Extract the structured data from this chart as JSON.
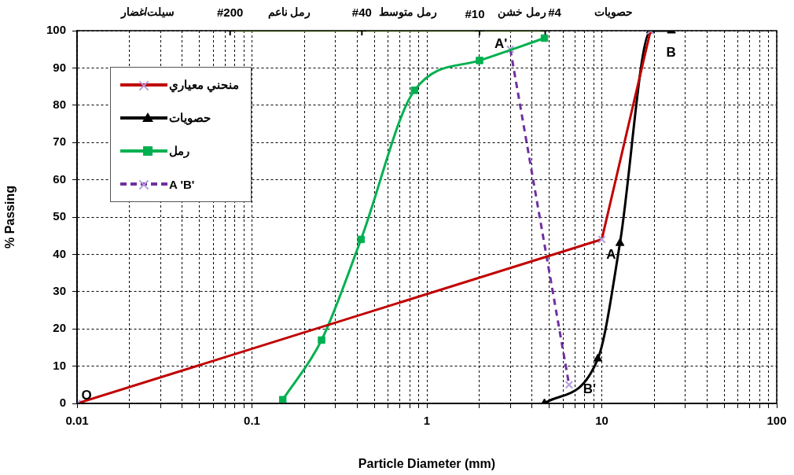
{
  "chart_data": {
    "type": "line",
    "xlabel": "Particle Diameter (mm)",
    "ylabel": "% Passing",
    "log": "x",
    "xlim": [
      0.01,
      100
    ],
    "xticks": [
      0.01,
      0.1,
      1,
      10,
      100
    ],
    "ylim": [
      0,
      100
    ],
    "yticks": [
      0,
      10,
      20,
      30,
      40,
      50,
      60,
      70,
      80,
      90,
      100
    ],
    "grid": true,
    "legend": "top left",
    "series": [
      {
        "name": "منحني معياري",
        "color": "#c00000",
        "marker": "cross",
        "line_style": "solid",
        "x": [
          0.01,
          10,
          19
        ],
        "values": [
          0,
          44,
          100
        ]
      },
      {
        "name": "حصويات",
        "color": "#000000",
        "marker": "triangle",
        "line_style": "solid",
        "x": [
          4.7,
          9.5,
          12.7,
          19,
          25
        ],
        "values": [
          0,
          12,
          43,
          100,
          100
        ]
      },
      {
        "name": "رمل",
        "color": "#00b050",
        "marker": "square",
        "line_style": "solid",
        "x": [
          0.15,
          0.25,
          0.42,
          0.85,
          2,
          4.7
        ],
        "values": [
          1,
          17,
          44,
          84,
          92,
          98
        ]
      },
      {
        "name": "A 'B'",
        "color": "#7030a0",
        "marker": "cross",
        "line_style": "dashed",
        "x": [
          3,
          6.5
        ],
        "values": [
          95,
          5
        ]
      },
      {
        "color": "#9bbb59",
        "marker": "cross",
        "line_style": "solid",
        "x": [
          0.075,
          0.425,
          2,
          4.75
        ],
        "values": [
          100,
          100,
          100,
          100
        ]
      }
    ],
    "annotations": [
      {
        "text": "O",
        "x": 0.01,
        "y": 0
      },
      {
        "text": "A",
        "x": 10,
        "y": 44
      },
      {
        "text": "B",
        "x": 19,
        "y": 100
      },
      {
        "text": "A'",
        "x": 3,
        "y": 95
      },
      {
        "text": "B'",
        "x": 6.5,
        "y": 5
      },
      {
        "text": "#200",
        "x": 0.075,
        "y": 100
      },
      {
        "text": "#40",
        "x": 0.425,
        "y": 100
      },
      {
        "text": "#10",
        "x": 2,
        "y": 100
      },
      {
        "text": "#4",
        "x": 4.75,
        "y": 100
      },
      "سيلت/غضار",
      "رمل ناعم",
      "رمل متوسط",
      "رمل خشن",
      "حصويات"
    ]
  }
}
